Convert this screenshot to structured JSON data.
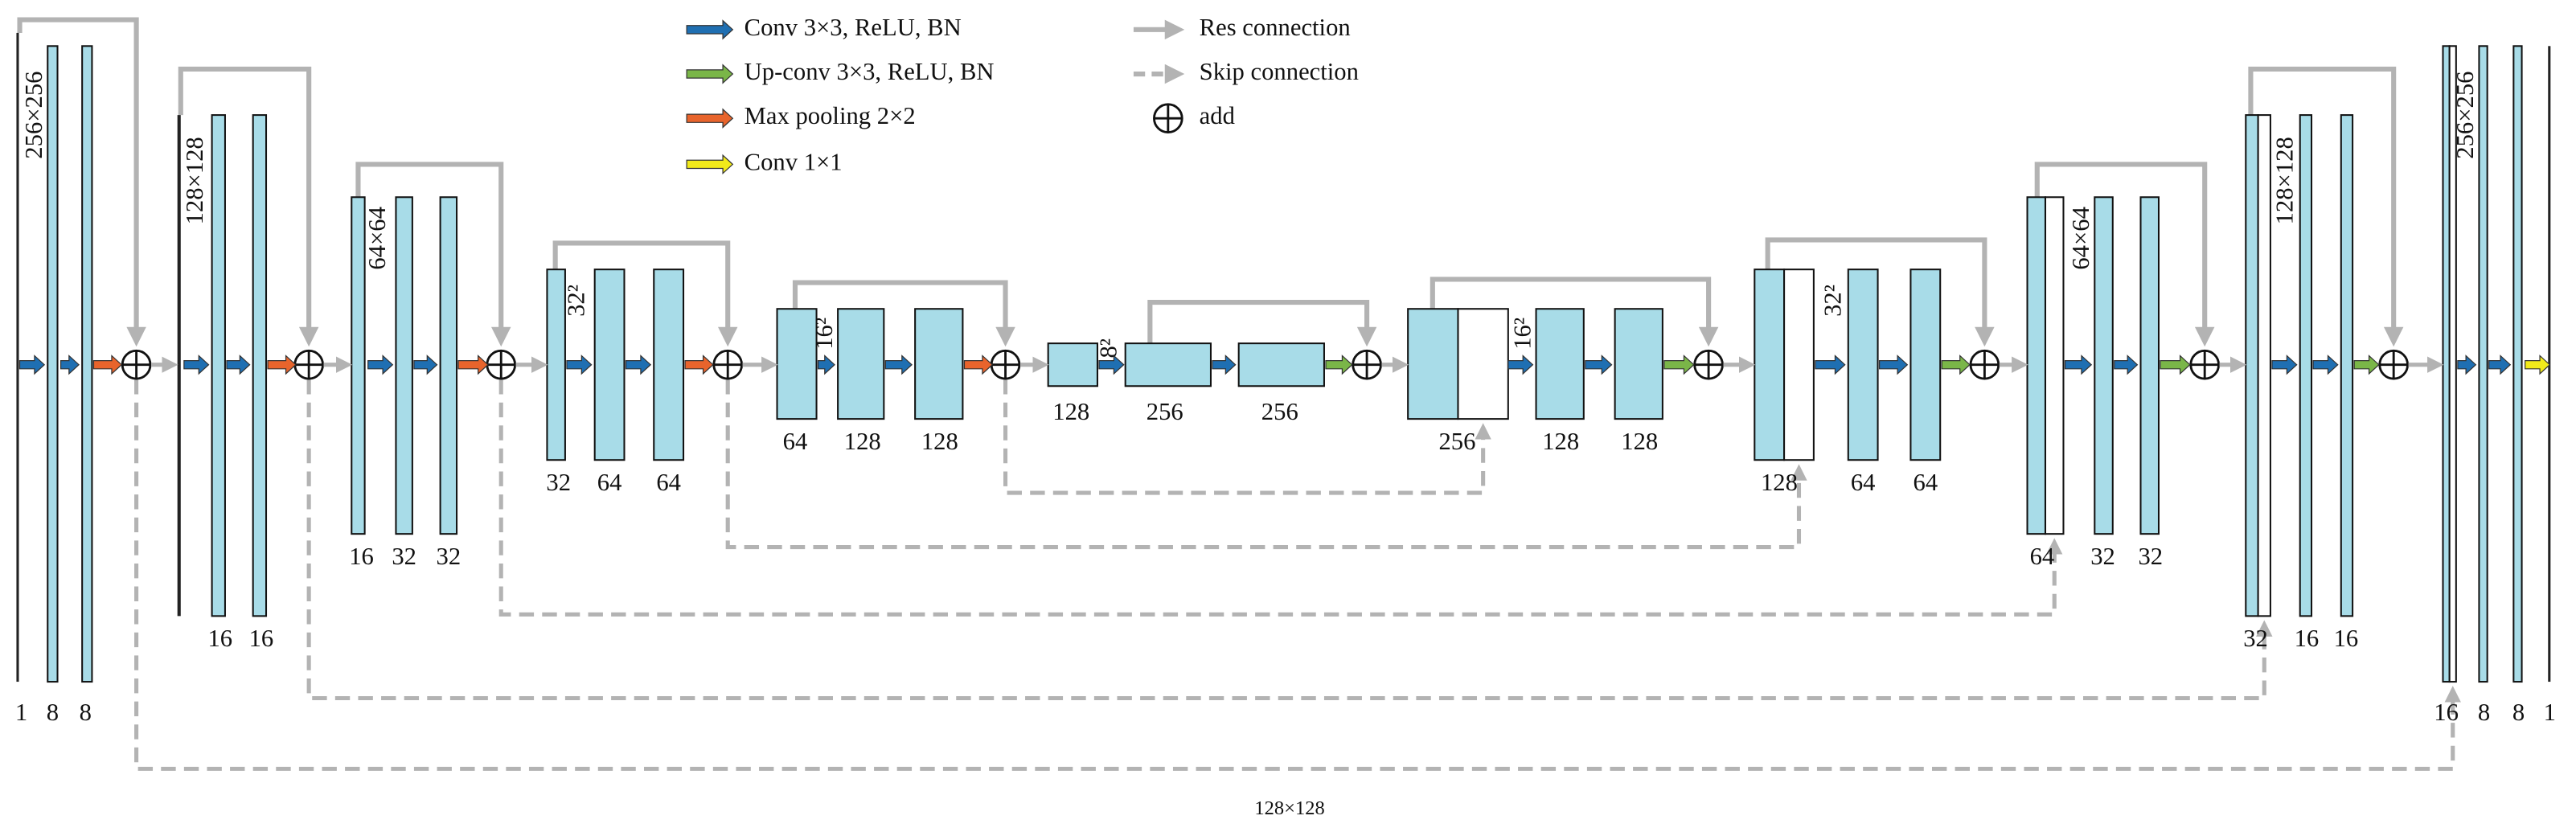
{
  "legend": [
    {
      "label": "Conv 3×3, ReLU, BN"
    },
    {
      "label": "Up-conv 3×3, ReLU, BN"
    },
    {
      "label": "Max pooling 2×2"
    },
    {
      "label": "Conv 1×1"
    },
    {
      "label": "Res connection"
    },
    {
      "label": "Skip connection"
    },
    {
      "label": "add"
    }
  ],
  "stages": [
    {
      "size": "256×256",
      "channels": [
        1,
        8,
        8
      ]
    },
    {
      "size": "128×128",
      "channels": [
        16,
        16
      ]
    },
    {
      "size": "64×64",
      "channels": [
        16,
        32,
        32
      ]
    },
    {
      "size": "32²",
      "channels": [
        32,
        64,
        64
      ]
    },
    {
      "size": "16²",
      "channels": [
        64,
        128,
        128
      ]
    },
    {
      "size": "8²",
      "channels": [
        128,
        256,
        256
      ]
    },
    {
      "size": "16²",
      "channels": [
        256,
        128,
        128
      ]
    },
    {
      "size": "32²",
      "channels": [
        128,
        64,
        64
      ]
    },
    {
      "size": "64×64",
      "channels": [
        64,
        32,
        32
      ]
    },
    {
      "size": "128×128",
      "channels": [
        32,
        16,
        16
      ]
    },
    {
      "size": "256×256",
      "channels": [
        16,
        8,
        8,
        1
      ]
    }
  ],
  "footer": "128×128"
}
